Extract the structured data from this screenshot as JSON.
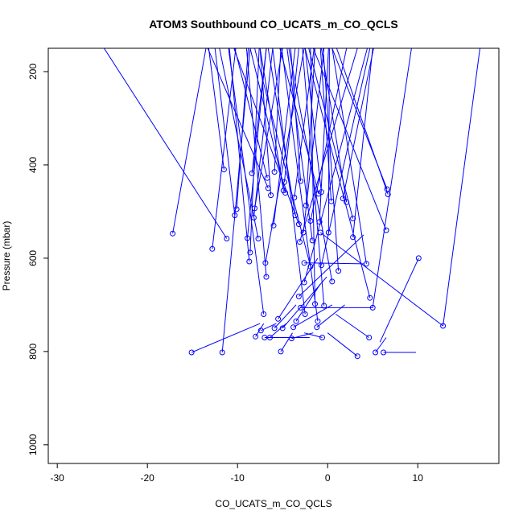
{
  "chart_data": {
    "type": "line",
    "title": "ATOM3 Southbound CO_UCATS_m_CO_QCLS",
    "xlabel": "CO_UCATS_m_CO_QCLS",
    "ylabel": "Pressure (mbar)",
    "xlim": [
      -31,
      19
    ],
    "ylim": [
      1040,
      150
    ],
    "y_reversed": true,
    "grid": false,
    "legend": "none",
    "x_ticks": [
      -30,
      -20,
      -10,
      0,
      10
    ],
    "x_tick_labels": [
      "-30",
      "-20",
      "-10",
      "0",
      "10"
    ],
    "y_ticks": [
      200,
      400,
      600,
      800,
      1000
    ],
    "y_tick_labels": [
      "200",
      "400",
      "600",
      "800",
      "1000"
    ],
    "colors": {
      "series": "#0000ff",
      "axis": "#000000",
      "background": "#ffffff"
    },
    "series": [
      {
        "points": [
          [
            -17.2,
            547
          ],
          [
            -13.5,
            150
          ]
        ]
      },
      {
        "points": [
          [
            -15.1,
            802
          ],
          [
            -7.5,
            740
          ]
        ]
      },
      {
        "points": [
          [
            -12.8,
            580
          ],
          [
            -10.2,
            150
          ]
        ]
      },
      {
        "points": [
          [
            -11.7,
            802
          ],
          [
            -8.6,
            150
          ]
        ]
      },
      {
        "points": [
          [
            -11.5,
            410
          ],
          [
            -13.2,
            150
          ]
        ]
      },
      {
        "points": [
          [
            -11.2,
            558
          ],
          [
            -24.8,
            150
          ]
        ]
      },
      {
        "points": [
          [
            -10.3,
            508
          ],
          [
            -12.5,
            150
          ]
        ]
      },
      {
        "points": [
          [
            -10.1,
            495
          ],
          [
            -8.8,
            150
          ]
        ]
      },
      {
        "points": [
          [
            -8.9,
            557
          ],
          [
            -6.8,
            150
          ]
        ]
      },
      {
        "points": [
          [
            -8.7,
            607
          ],
          [
            -10.9,
            150
          ]
        ]
      },
      {
        "points": [
          [
            -8.6,
            588
          ],
          [
            -7.6,
            150
          ]
        ]
      },
      {
        "points": [
          [
            -8.4,
            418
          ],
          [
            -6.8,
            150
          ]
        ]
      },
      {
        "points": [
          [
            -8.1,
            493
          ],
          [
            -5.0,
            150
          ]
        ]
      },
      {
        "points": [
          [
            -8.2,
            513
          ],
          [
            -6.1,
            150
          ]
        ]
      },
      {
        "points": [
          [
            -8.0,
            768
          ],
          [
            -7.1,
            740
          ]
        ]
      },
      {
        "points": [
          [
            -7.7,
            558
          ],
          [
            -12.0,
            150
          ]
        ]
      },
      {
        "points": [
          [
            -7.4,
            755
          ],
          [
            -5.7,
            740
          ]
        ]
      },
      {
        "points": [
          [
            -7.1,
            720
          ],
          [
            -11.0,
            150
          ]
        ]
      },
      {
        "points": [
          [
            -7.0,
            770
          ],
          [
            -2.0,
            770
          ]
        ]
      },
      {
        "points": [
          [
            -6.9,
            610
          ],
          [
            -2.6,
            150
          ]
        ]
      },
      {
        "points": [
          [
            -6.8,
            640
          ],
          [
            -9.0,
            150
          ]
        ]
      },
      {
        "points": [
          [
            -6.7,
            428
          ],
          [
            -10.3,
            150
          ]
        ]
      },
      {
        "points": [
          [
            -6.6,
            450
          ],
          [
            -13.3,
            150
          ]
        ]
      },
      {
        "points": [
          [
            -6.4,
            770
          ],
          [
            -4.6,
            740
          ]
        ]
      },
      {
        "points": [
          [
            -6.3,
            465
          ],
          [
            -7.5,
            150
          ]
        ]
      },
      {
        "points": [
          [
            -5.9,
            415
          ],
          [
            -5.2,
            150
          ]
        ]
      },
      {
        "points": [
          [
            -6.0,
            530
          ],
          [
            -3.6,
            150
          ]
        ]
      },
      {
        "points": [
          [
            -5.9,
            750
          ],
          [
            -3.5,
            700
          ]
        ]
      },
      {
        "points": [
          [
            -5.5,
            730
          ],
          [
            -1.1,
            600
          ]
        ]
      },
      {
        "points": [
          [
            -5.2,
            800
          ],
          [
            -3.9,
            760
          ]
        ]
      },
      {
        "points": [
          [
            -5.0,
            750
          ],
          [
            -0.1,
            640
          ]
        ]
      },
      {
        "points": [
          [
            -4.9,
            455
          ],
          [
            -7.5,
            150
          ]
        ]
      },
      {
        "points": [
          [
            -4.8,
            437
          ],
          [
            -3.2,
            150
          ]
        ]
      },
      {
        "points": [
          [
            -4.7,
            460
          ],
          [
            -8.6,
            150
          ]
        ]
      },
      {
        "points": [
          [
            -4.0,
            772
          ],
          [
            -1.6,
            760
          ]
        ]
      },
      {
        "points": [
          [
            -3.8,
            748
          ],
          [
            0.5,
            700
          ]
        ]
      },
      {
        "points": [
          [
            -3.6,
            508
          ],
          [
            -6.6,
            150
          ]
        ]
      },
      {
        "points": [
          [
            -3.7,
            470
          ],
          [
            -1.5,
            150
          ]
        ]
      },
      {
        "points": [
          [
            -3.5,
            735
          ],
          [
            -0.8,
            655
          ]
        ]
      },
      {
        "points": [
          [
            -3.1,
            565
          ],
          [
            3.3,
            150
          ]
        ]
      },
      {
        "points": [
          [
            -3.2,
            527
          ],
          [
            -10.4,
            150
          ]
        ]
      },
      {
        "points": [
          [
            -3.0,
            435
          ],
          [
            -4.1,
            150
          ]
        ]
      },
      {
        "points": [
          [
            -3.2,
            682
          ],
          [
            4.0,
            550
          ]
        ]
      },
      {
        "points": [
          [
            -3.0,
            706
          ],
          [
            5.0,
            706
          ]
        ]
      },
      {
        "points": [
          [
            -2.7,
            545
          ],
          [
            -0.4,
            150
          ]
        ]
      },
      {
        "points": [
          [
            -2.6,
            610
          ],
          [
            4.0,
            612
          ]
        ]
      },
      {
        "points": [
          [
            -2.6,
            652
          ],
          [
            4.4,
            150
          ]
        ]
      },
      {
        "points": [
          [
            -2.5,
            720
          ],
          [
            -6.1,
            150
          ]
        ]
      },
      {
        "points": [
          [
            -2.4,
            487
          ],
          [
            -1.4,
            150
          ]
        ]
      },
      {
        "points": [
          [
            -1.9,
            520
          ],
          [
            2.1,
            150
          ]
        ]
      },
      {
        "points": [
          [
            -1.7,
            562
          ],
          [
            -4.5,
            150
          ]
        ]
      },
      {
        "points": [
          [
            -1.9,
            618
          ],
          [
            -8.1,
            150
          ]
        ]
      },
      {
        "points": [
          [
            -1.4,
            698
          ],
          [
            -1.9,
            150
          ]
        ]
      },
      {
        "points": [
          [
            -1.2,
            748
          ],
          [
            1.9,
            700
          ]
        ]
      },
      {
        "points": [
          [
            -0.7,
            615
          ],
          [
            4.7,
            150
          ]
        ]
      },
      {
        "points": [
          [
            -0.8,
            545
          ],
          [
            12.8,
            745
          ]
        ]
      },
      {
        "points": [
          [
            -1.1,
            735
          ],
          [
            -5.1,
            150
          ]
        ]
      },
      {
        "points": [
          [
            -0.9,
            522
          ],
          [
            0.1,
            150
          ]
        ]
      },
      {
        "points": [
          [
            -1.0,
            462
          ],
          [
            -5.3,
            150
          ]
        ]
      },
      {
        "points": [
          [
            -0.7,
            458
          ],
          [
            -2.5,
            150
          ]
        ]
      },
      {
        "points": [
          [
            -0.4,
            702
          ],
          [
            -2.8,
            150
          ]
        ]
      },
      {
        "points": [
          [
            -0.6,
            770
          ],
          [
            -2.6,
            760
          ]
        ]
      },
      {
        "points": [
          [
            0.4,
            478
          ],
          [
            -0.8,
            150
          ]
        ]
      },
      {
        "points": [
          [
            0.1,
            545
          ],
          [
            0.2,
            150
          ]
        ]
      },
      {
        "points": [
          [
            0.5,
            650
          ],
          [
            -4.3,
            150
          ]
        ]
      },
      {
        "points": [
          [
            1.2,
            627
          ],
          [
            -0.5,
            150
          ]
        ]
      },
      {
        "points": [
          [
            1.7,
            472
          ],
          [
            5.1,
            150
          ]
        ]
      },
      {
        "points": [
          [
            2.1,
            480
          ],
          [
            -0.7,
            150
          ]
        ]
      },
      {
        "points": [
          [
            2.8,
            515
          ],
          [
            -2.1,
            150
          ]
        ]
      },
      {
        "points": [
          [
            2.8,
            555
          ],
          [
            5.0,
            150
          ]
        ]
      },
      {
        "points": [
          [
            3.3,
            810
          ],
          [
            0.0,
            760
          ]
        ]
      },
      {
        "points": [
          [
            4.3,
            612
          ],
          [
            0.5,
            150
          ]
        ]
      },
      {
        "points": [
          [
            4.6,
            770
          ],
          [
            0.9,
            720
          ]
        ]
      },
      {
        "points": [
          [
            4.7,
            685
          ],
          [
            -2.5,
            150
          ]
        ]
      },
      {
        "points": [
          [
            5.0,
            706
          ],
          [
            9.3,
            150
          ]
        ]
      },
      {
        "points": [
          [
            5.3,
            802
          ],
          [
            6.5,
            770
          ]
        ]
      },
      {
        "points": [
          [
            6.2,
            802
          ],
          [
            9.8,
            802
          ]
        ]
      },
      {
        "points": [
          [
            6.5,
            540
          ],
          [
            -1.6,
            150
          ]
        ]
      },
      {
        "points": [
          [
            6.6,
            452
          ],
          [
            0.5,
            150
          ]
        ]
      },
      {
        "points": [
          [
            6.7,
            463
          ],
          [
            1.0,
            150
          ]
        ]
      },
      {
        "points": [
          [
            10.1,
            600
          ],
          [
            5.8,
            780
          ]
        ]
      },
      {
        "points": [
          [
            12.8,
            745
          ],
          [
            16.9,
            150
          ]
        ]
      }
    ]
  }
}
